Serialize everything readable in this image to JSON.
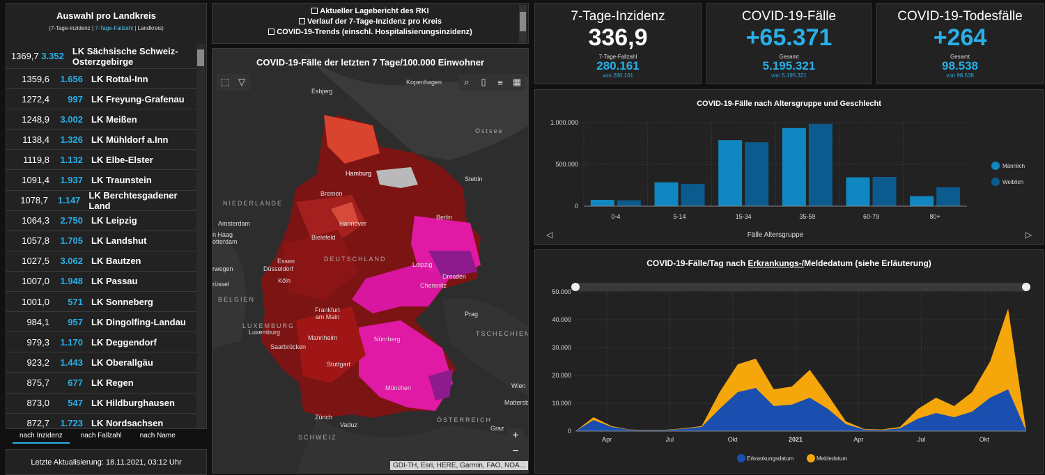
{
  "left": {
    "title": "Auswahl pro Landkreis",
    "subtitle_a": "(7-Tage-Inzidenz | ",
    "subtitle_b": "7-Tage-Fallzahl",
    "subtitle_c": " | Landkreis)",
    "rows": [
      {
        "inz": "1369,7",
        "cases": "3.352",
        "name": "LK Sächsische Schweiz-Osterzgebirge"
      },
      {
        "inz": "1359,6",
        "cases": "1.656",
        "name": "LK Rottal-Inn"
      },
      {
        "inz": "1272,4",
        "cases": "997",
        "name": "LK Freyung-Grafenau"
      },
      {
        "inz": "1248,9",
        "cases": "3.002",
        "name": "LK Meißen"
      },
      {
        "inz": "1138,4",
        "cases": "1.326",
        "name": "LK Mühldorf a.Inn"
      },
      {
        "inz": "1119,8",
        "cases": "1.132",
        "name": "LK Elbe-Elster"
      },
      {
        "inz": "1091,4",
        "cases": "1.937",
        "name": "LK Traunstein"
      },
      {
        "inz": "1078,7",
        "cases": "1.147",
        "name": "LK Berchtesgadener Land"
      },
      {
        "inz": "1064,3",
        "cases": "2.750",
        "name": "LK Leipzig"
      },
      {
        "inz": "1057,8",
        "cases": "1.705",
        "name": "LK Landshut"
      },
      {
        "inz": "1027,5",
        "cases": "3.062",
        "name": "LK Bautzen"
      },
      {
        "inz": "1007,0",
        "cases": "1.948",
        "name": "LK Passau"
      },
      {
        "inz": "1001,0",
        "cases": "571",
        "name": "LK Sonneberg"
      },
      {
        "inz": "984,1",
        "cases": "957",
        "name": "LK Dingolfing-Landau"
      },
      {
        "inz": "979,3",
        "cases": "1.170",
        "name": "LK Deggendorf"
      },
      {
        "inz": "923,2",
        "cases": "1.443",
        "name": "LK Oberallgäu"
      },
      {
        "inz": "875,7",
        "cases": "677",
        "name": "LK Regen"
      },
      {
        "inz": "873,0",
        "cases": "547",
        "name": "LK Hildburghausen"
      },
      {
        "inz": "872,7",
        "cases": "1.723",
        "name": "LK Nordsachsen"
      }
    ],
    "sort": {
      "by_incidence": "nach Inzidenz",
      "by_cases": "nach Fallzahl",
      "by_name": "nach Name"
    },
    "updated": "Letzte Aktualisierung: 18.11.2021, 03:12 Uhr"
  },
  "links": {
    "l1": "Aktueller Lagebericht des RKI",
    "l2": "Verlauf der 7-Tage-Inzidenz pro Kreis",
    "l3": "COVID-19-Trends (einschl. Hospitalisierungsinzidenz)"
  },
  "map": {
    "title": "COVID-19-Fälle der letzten 7 Tage/100.000 Einwohner",
    "attribution": "GDI-TH, Esri, HERE, Garmin, FAO, NOA...",
    "labels": {
      "esbjerg": "Esbjerg",
      "kopenhagen": "Kopenhagen",
      "ostsee": "Ostsee",
      "hamburg": "Hamburg",
      "stettin": "Stettin",
      "bremen": "Bremen",
      "niederlande": "NIEDERLANDE",
      "amsterdam": "Amsterdam",
      "denhaag": "n Haag",
      "rotterdam": "otterdam",
      "hannover": "Hannover",
      "berlin": "Berlin",
      "bielefeld": "Bielefeld",
      "deutschland": "DEUTSCHLAND",
      "essen": "Essen",
      "duesseldorf": "Düsseldorf",
      "leipzig": "Leipzig",
      "koeln": "Köln",
      "dresden": "Dresden",
      "chemnitz": "Chemnitz",
      "wegen": "rwegen",
      "bruessel": "rüssel",
      "belgien": "BELGIEN",
      "frankfurt": "Frankfurt am Main",
      "prag": "Prag",
      "luxemburg_c": "LUXEMBURG",
      "luxemburg": "Luxemburg",
      "tschechien": "TSCHECHIEN",
      "mannheim": "Mannheim",
      "nuernberg": "Nürnberg",
      "saarbruecken": "Saarbrücken",
      "stuttgart": "Stuttgart",
      "muenchen": "München",
      "wien": "Wien",
      "mattersb": "Mattersb",
      "zuerich": "Zürich",
      "vaduz": "Vaduz",
      "oesterreich": "ÖSTERREICH",
      "graz": "Graz",
      "schweiz": "SCHWEIZ"
    }
  },
  "kpi": {
    "inzidenz": {
      "title": "7-Tage-Inzidenz",
      "value": "336,9",
      "sub": "7-Tage-Fallzahl",
      "value2": "280.161",
      "von": "von 280.161"
    },
    "faelle": {
      "title": "COVID-19-Fälle",
      "value": "+65.371",
      "sub": "Gesamt",
      "value2": "5.195.321",
      "von": "von 5.195.321"
    },
    "tode": {
      "title": "COVID-19-Todesfälle",
      "value": "+264",
      "sub": "Gesamt",
      "value2": "98.538",
      "von": "von 98.538"
    }
  },
  "colors": {
    "male": "#1087c0",
    "female": "#0b5b8e",
    "onset": "#1a4fb0",
    "report": "#f5a60a",
    "accent": "#28b0e8"
  },
  "chart_data": [
    {
      "type": "bar",
      "title": "COVID-19-Fälle nach Altersgruppe und Geschlecht",
      "xlabel": "Fälle Altersgruppe",
      "ylabel": "",
      "categories": [
        "0-4",
        "5-14",
        "15-34",
        "35-59",
        "60-79",
        "80+"
      ],
      "ylim": [
        0,
        1000000
      ],
      "yticks": [
        "1.000.000",
        "500.000",
        "0"
      ],
      "legend_position": "right",
      "series": [
        {
          "name": "Männlich",
          "values": [
            75000,
            285000,
            790000,
            935000,
            345000,
            120000
          ]
        },
        {
          "name": "Weiblich",
          "values": [
            70000,
            265000,
            765000,
            985000,
            350000,
            225000
          ]
        }
      ]
    },
    {
      "type": "area",
      "title_a": "COVID-19-Fälle/Tag nach ",
      "title_b": "Erkrankungs-/",
      "title_c": "Meldedatum (siehe Erläuterung)",
      "ylim": [
        0,
        50000
      ],
      "yticks": [
        "50.000",
        "40.000",
        "30.000",
        "20.000",
        "10.000",
        "0"
      ],
      "xticks": [
        "Apr",
        "Jul",
        "Okt",
        "2021",
        "Apr",
        "Jul",
        "Okt"
      ],
      "legend_position": "bottom",
      "x_month_index": [
        0,
        1,
        2,
        3,
        4,
        5,
        6,
        7,
        8,
        9,
        10,
        11,
        12,
        13,
        14,
        15,
        16,
        17,
        18,
        19,
        20,
        21,
        22,
        23,
        24,
        25
      ],
      "series": [
        {
          "name": "Erkrankungsdatum",
          "values": [
            0,
            4000,
            1500,
            500,
            300,
            400,
            800,
            1500,
            8000,
            14000,
            15500,
            9000,
            9500,
            12000,
            8000,
            2500,
            600,
            400,
            1000,
            4500,
            6500,
            5000,
            7000,
            12000,
            15000,
            0
          ]
        },
        {
          "name": "Meldedatum",
          "values": [
            0,
            5000,
            1800,
            600,
            400,
            500,
            1000,
            1800,
            14000,
            24000,
            26000,
            15000,
            16000,
            22000,
            13000,
            3500,
            800,
            600,
            1500,
            8000,
            12000,
            9000,
            14000,
            25000,
            44000,
            0
          ]
        }
      ]
    }
  ]
}
